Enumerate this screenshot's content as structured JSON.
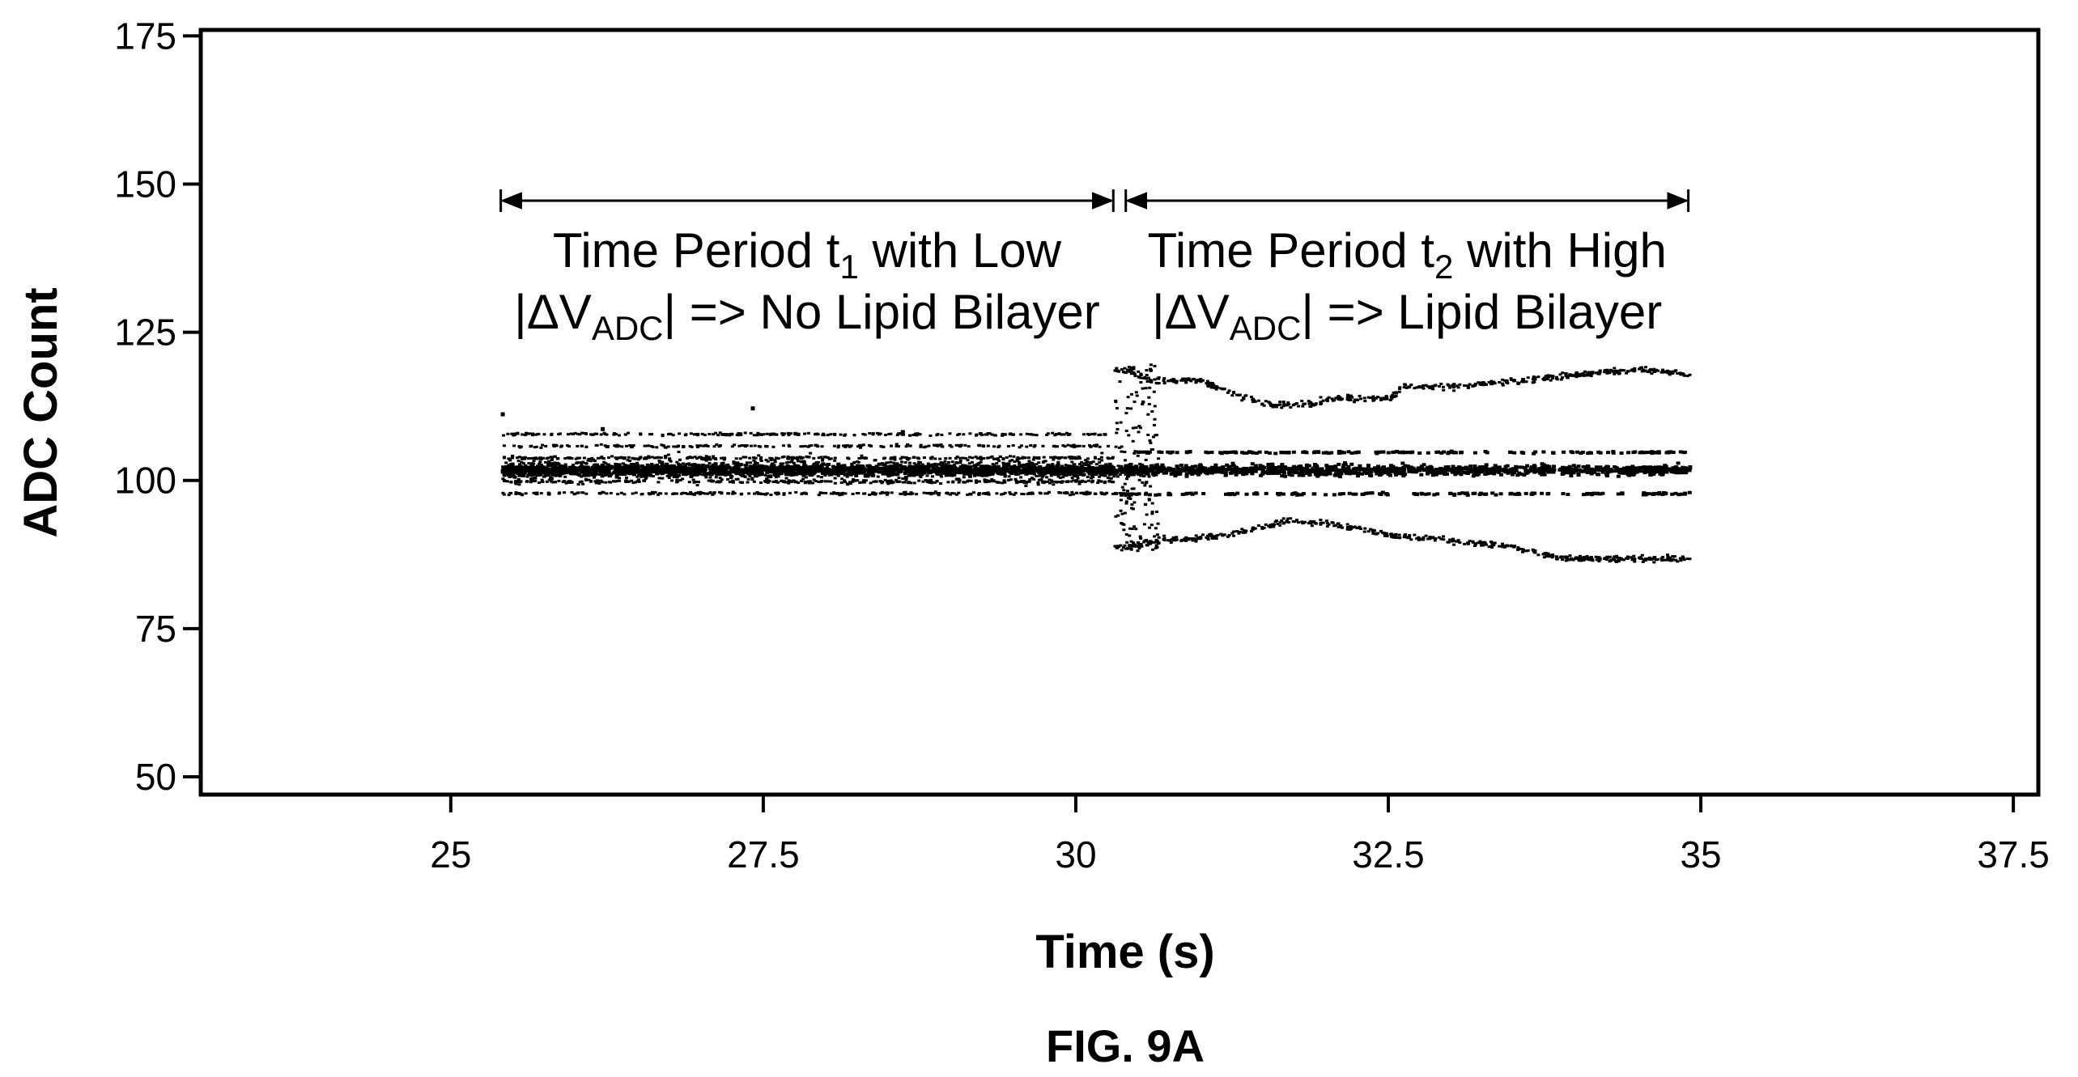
{
  "figure_label": "FIG. 9A",
  "chart_data": {
    "type": "scatter",
    "xlabel": "Time (s)",
    "ylabel": "ADC Count",
    "xlim": [
      23.0,
      37.7
    ],
    "ylim": [
      47,
      176
    ],
    "xticks": [
      25,
      27.5,
      30,
      32.5,
      35,
      37.5
    ],
    "xtick_labels": [
      "25",
      "27.5",
      "30",
      "32.5",
      "35",
      "37.5"
    ],
    "yticks": [
      50,
      75,
      100,
      125,
      150,
      175
    ],
    "ytick_labels": [
      "50",
      "75",
      "100",
      "125",
      "150",
      "175"
    ],
    "grid": false,
    "legend": "none",
    "colors": {
      "points": "#000000",
      "axes": "#000000"
    },
    "series": [
      {
        "x_start": 25.4,
        "x_end": 30.3,
        "center": 102,
        "spread": 6.5,
        "bands": [
          98,
          100,
          102,
          104,
          106,
          108
        ],
        "outliers": [
          [
            25.4,
            111.5
          ],
          [
            27.4,
            112.5
          ],
          [
            26.2,
            109
          ],
          [
            28.6,
            108.5
          ]
        ]
      },
      {
        "x_start": 30.3,
        "x_end": 34.9,
        "center": 102,
        "spread": 2.5,
        "bands": [
          98,
          102,
          105
        ],
        "upper_envelope": [
          [
            30.4,
            119
          ],
          [
            30.6,
            117
          ],
          [
            31.0,
            117
          ],
          [
            31.1,
            116
          ],
          [
            31.5,
            113
          ],
          [
            31.9,
            113
          ],
          [
            32.0,
            114
          ],
          [
            32.5,
            114
          ],
          [
            32.6,
            116
          ],
          [
            33.0,
            116
          ],
          [
            33.5,
            117
          ],
          [
            34.0,
            118
          ],
          [
            34.5,
            119
          ],
          [
            34.9,
            118
          ]
        ],
        "lower_envelope": [
          [
            30.4,
            89
          ],
          [
            30.6,
            90
          ],
          [
            31.0,
            90.5
          ],
          [
            31.4,
            92
          ],
          [
            31.7,
            93.5
          ],
          [
            32.0,
            93
          ],
          [
            32.5,
            91
          ],
          [
            33.0,
            90
          ],
          [
            33.5,
            89
          ],
          [
            33.9,
            87
          ],
          [
            34.4,
            87
          ],
          [
            34.9,
            87
          ]
        ]
      }
    ],
    "annotations": [
      {
        "range": [
          25.4,
          30.3
        ],
        "line1_a": "Time Period t",
        "line1_sub": "1",
        "line1_b": " with Low",
        "line2_a": "|ΔV",
        "line2_sub": "ADC",
        "line2_b": "| => No Lipid Bilayer"
      },
      {
        "range": [
          30.4,
          34.9
        ],
        "line1_a": "Time Period t",
        "line1_sub": "2",
        "line1_b": " with High",
        "line2_a": "|ΔV",
        "line2_sub": "ADC",
        "line2_b": "| => Lipid Bilayer"
      }
    ]
  }
}
